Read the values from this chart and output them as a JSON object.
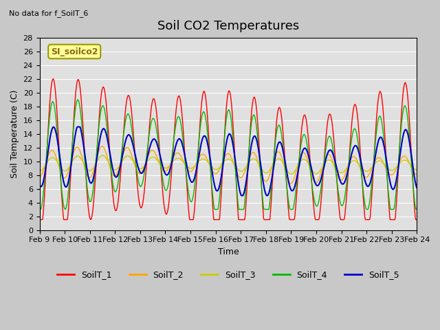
{
  "title": "Soil CO2 Temperatures",
  "xlabel": "Time",
  "ylabel": "Soil Temperature (C)",
  "note": "No data for f_SoilT_6",
  "legend_label": "SI_soilco2",
  "ylim": [
    0,
    28
  ],
  "series_colors": {
    "SoilT_1": "#FF0000",
    "SoilT_2": "#FFA500",
    "SoilT_3": "#CCCC00",
    "SoilT_4": "#00BB00",
    "SoilT_5": "#0000CC"
  },
  "xtick_labels": [
    "Feb 9",
    "Feb 10",
    "Feb 11",
    "Feb 12",
    "Feb 13",
    "Feb 14",
    "Feb 15",
    "Feb 16",
    "Feb 17",
    "Feb 18",
    "Feb 19",
    "Feb 20",
    "Feb 21",
    "Feb 22",
    "Feb 23",
    "Feb 24"
  ],
  "bg_color": "#E0E0E0",
  "grid_color": "#FFFFFF",
  "fig_bg": "#C8C8C8"
}
